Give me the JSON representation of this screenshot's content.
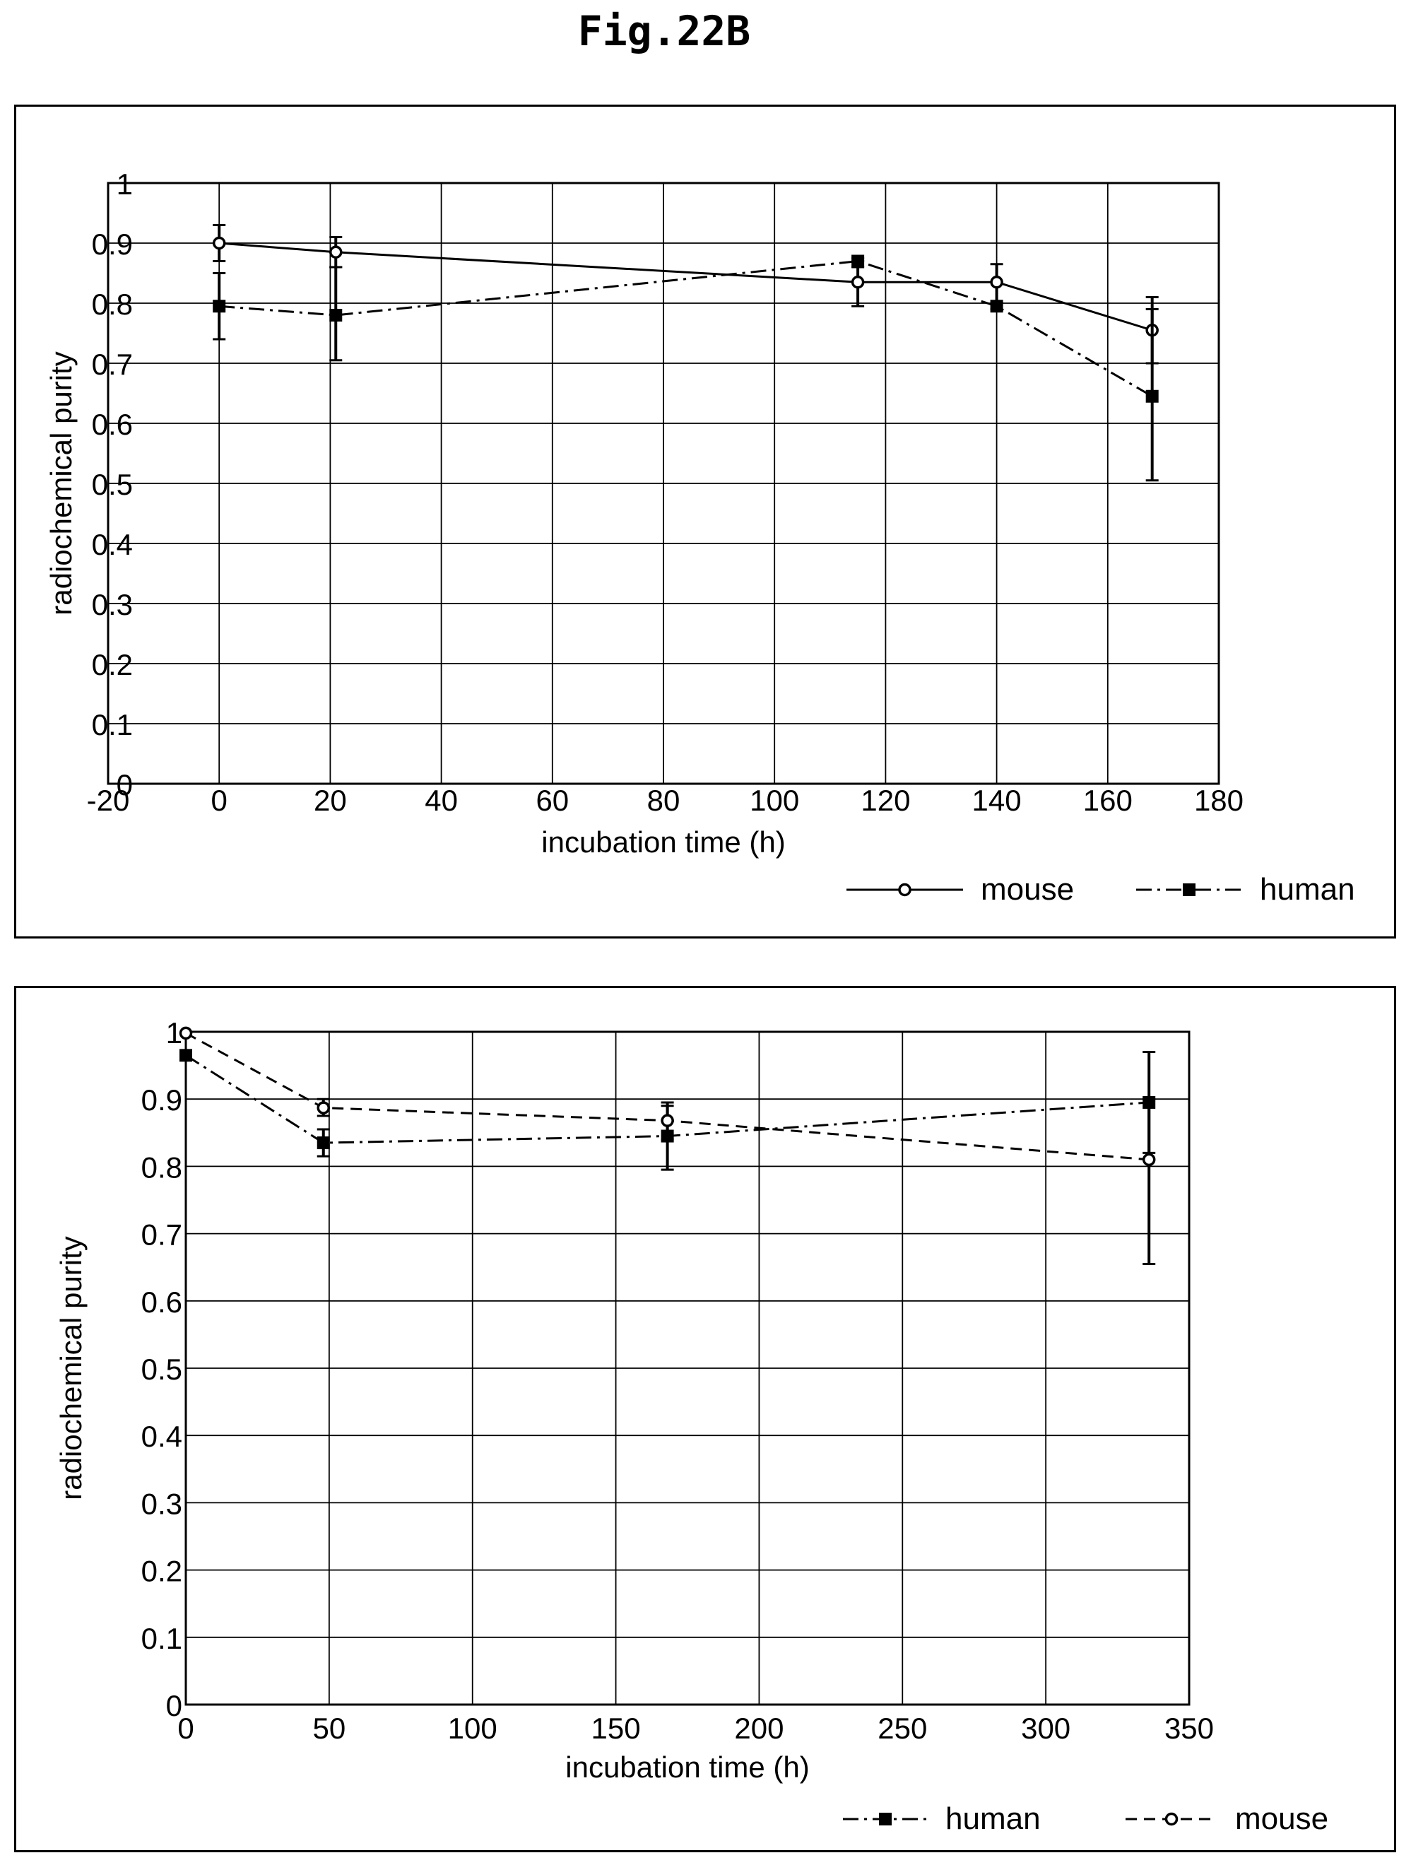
{
  "figure_title": "Fig.22B",
  "chart_data": [
    {
      "type": "line",
      "xlabel": "incubation time (h)",
      "ylabel": "radiochemical purity",
      "xlim": [
        -20,
        180
      ],
      "ylim": [
        0,
        1
      ],
      "xticks": [
        "-20",
        "0",
        "20",
        "40",
        "60",
        "80",
        "100",
        "120",
        "140",
        "160",
        "180"
      ],
      "yticks": [
        "0",
        "0.1",
        "0.2",
        "0.3",
        "0.4",
        "0.5",
        "0.6",
        "0.7",
        "0.8",
        "0.9",
        "1"
      ],
      "grid": true,
      "legend_position": "bottom-right",
      "series": [
        {
          "name": "mouse",
          "line_style": "solid",
          "marker": "circle",
          "x": [
            0,
            21,
            115,
            140,
            168
          ],
          "y": [
            0.9,
            0.885,
            0.835,
            0.835,
            0.755
          ],
          "err_low": [
            0.87,
            0.86,
            0.795,
            0.8,
            0.7
          ],
          "err_high": [
            0.93,
            0.91,
            0.87,
            0.865,
            0.81
          ]
        },
        {
          "name": "human",
          "line_style": "dash-dot",
          "marker": "square",
          "x": [
            0,
            21,
            115,
            140,
            168
          ],
          "y": [
            0.795,
            0.78,
            0.87,
            0.795,
            0.645
          ],
          "err_low": [
            0.74,
            0.705,
            0.86,
            0.79,
            0.505
          ],
          "err_high": [
            0.85,
            0.86,
            0.875,
            0.8,
            0.79
          ]
        }
      ]
    },
    {
      "type": "line",
      "xlabel": "incubation time (h)",
      "ylabel": "radiochemical purity",
      "xlim": [
        0,
        350
      ],
      "ylim": [
        0,
        1
      ],
      "xticks": [
        "0",
        "50",
        "100",
        "150",
        "200",
        "250",
        "300",
        "350"
      ],
      "yticks": [
        "0",
        "0.1",
        "0.2",
        "0.3",
        "0.4",
        "0.5",
        "0.6",
        "0.7",
        "0.8",
        "0.9",
        "1"
      ],
      "grid": true,
      "legend_position": "bottom-right",
      "series": [
        {
          "name": "human",
          "line_style": "dash-dot",
          "marker": "square",
          "x": [
            0,
            48,
            168,
            336
          ],
          "y": [
            0.965,
            0.835,
            0.845,
            0.895
          ],
          "err_low": [
            0.965,
            0.815,
            0.795,
            0.82
          ],
          "err_high": [
            0.965,
            0.855,
            0.895,
            0.97
          ]
        },
        {
          "name": "mouse",
          "line_style": "dashed",
          "marker": "circle",
          "x": [
            0,
            48,
            168,
            336
          ],
          "y": [
            0.998,
            0.887,
            0.868,
            0.81
          ],
          "err_low": [
            0.998,
            0.875,
            0.84,
            0.655
          ],
          "err_high": [
            0.998,
            0.9,
            0.89,
            0.9
          ]
        }
      ]
    }
  ]
}
